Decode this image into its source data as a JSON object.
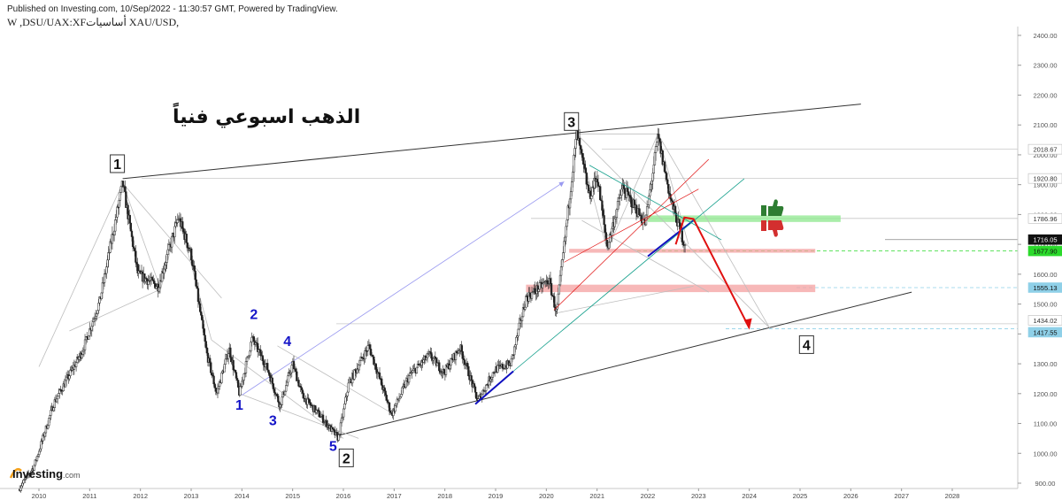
{
  "header": {
    "published": "Published on Investing.com, 10/Sep/2022 - 11:30:57 GMT, Powered by TradingView.",
    "symbol": "W ,DSU/UAX:XFأساسيات XAU/USD,"
  },
  "annotation_title": "الذهب اسبوعي فنياً",
  "logo": {
    "brand": "Investing",
    "suffix": ".com"
  },
  "colors": {
    "bullish_zone": "#8ee88e",
    "bearish_zone": "#f4a0a0",
    "down_arrow": "#e01010",
    "wave_blue": "#1010c0",
    "teal_line": "#15a08c",
    "price_label": "#111111",
    "level_green": "#2bd92b",
    "level_blue": "#8fd0e8"
  },
  "icons": [
    "thumbs-up-icon",
    "thumbs-down-icon",
    "investing-logo-icon"
  ],
  "chart_data": {
    "type": "candlestick",
    "timeframe": "weekly",
    "x_ticks": [
      "2010",
      "2011",
      "2012",
      "2013",
      "2014",
      "2015",
      "2016",
      "2017",
      "2018",
      "2019",
      "2020",
      "2021",
      "2022",
      "2023",
      "2024",
      "2025",
      "2026",
      "2027",
      "2028"
    ],
    "y_ticks": [
      "2400.00",
      "2300.00",
      "2200.00",
      "2100.00",
      "2000.00",
      "1900.00",
      "1800.00",
      "1700.00",
      "1600.00",
      "1500.00",
      "1400.00",
      "1300.00",
      "1200.00",
      "1100.00",
      "1000.00",
      "900.00"
    ],
    "ylim": [
      880,
      2420
    ],
    "xlim": [
      2009.6,
      2029.3
    ],
    "price_labels": [
      {
        "value": "2018.67",
        "kind": "plain"
      },
      {
        "value": "1920.80",
        "kind": "plain"
      },
      {
        "value": "1786.96",
        "kind": "plain"
      },
      {
        "value": "1716.05",
        "kind": "current"
      },
      {
        "value": "1677.90",
        "kind": "green"
      },
      {
        "value": "1555.13",
        "kind": "blue"
      },
      {
        "value": "1434.02",
        "kind": "plain"
      },
      {
        "value": "1417.55",
        "kind": "blue"
      }
    ],
    "anchors": [
      [
        2009.6,
        880
      ],
      [
        2009.9,
        955
      ],
      [
        2010.3,
        1170
      ],
      [
        2010.85,
        1340
      ],
      [
        2011.2,
        1510
      ],
      [
        2011.65,
        1905
      ],
      [
        2011.95,
        1600
      ],
      [
        2012.35,
        1560
      ],
      [
        2012.75,
        1790
      ],
      [
        2013.0,
        1665
      ],
      [
        2013.3,
        1340
      ],
      [
        2013.5,
        1200
      ],
      [
        2013.75,
        1350
      ],
      [
        2013.95,
        1200
      ],
      [
        2014.2,
        1385
      ],
      [
        2014.5,
        1285
      ],
      [
        2014.75,
        1160
      ],
      [
        2015.0,
        1300
      ],
      [
        2015.2,
        1190
      ],
      [
        2015.55,
        1125
      ],
      [
        2015.9,
        1050
      ],
      [
        2016.1,
        1230
      ],
      [
        2016.5,
        1360
      ],
      [
        2016.95,
        1130
      ],
      [
        2017.3,
        1260
      ],
      [
        2017.7,
        1330
      ],
      [
        2017.98,
        1270
      ],
      [
        2018.3,
        1355
      ],
      [
        2018.65,
        1175
      ],
      [
        2018.98,
        1280
      ],
      [
        2019.3,
        1300
      ],
      [
        2019.6,
        1520
      ],
      [
        2020.05,
        1580
      ],
      [
        2020.2,
        1470
      ],
      [
        2020.6,
        2070
      ],
      [
        2020.85,
        1860
      ],
      [
        2021.0,
        1930
      ],
      [
        2021.2,
        1690
      ],
      [
        2021.5,
        1890
      ],
      [
        2021.95,
        1770
      ],
      [
        2022.2,
        2060
      ],
      [
        2022.45,
        1850
      ],
      [
        2022.72,
        1700
      ],
      [
        2022.75,
        1716
      ]
    ],
    "wave_labels_major": [
      {
        "label": "1",
        "x": 2011.65,
        "y": 1905
      },
      {
        "label": "2",
        "x": 2015.9,
        "y": 1050
      },
      {
        "label": "3",
        "x": 2020.6,
        "y": 2070
      },
      {
        "label": "4",
        "x": 2024.5,
        "y": 1417.55
      }
    ],
    "wave_labels_minor": [
      {
        "label": "1",
        "x": 2013.95,
        "y": 1200
      },
      {
        "label": "2",
        "x": 2014.2,
        "y": 1385
      },
      {
        "label": "3",
        "x": 2014.75,
        "y": 1160
      },
      {
        "label": "4",
        "x": 2015.0,
        "y": 1300
      },
      {
        "label": "5",
        "x": 2015.9,
        "y": 1050
      }
    ],
    "zones": [
      {
        "kind": "bullish",
        "x1": 2022.0,
        "x2": 2025.8,
        "y_low": 1775,
        "y_high": 1797
      },
      {
        "kind": "bearish",
        "x1": 2020.45,
        "x2": 2025.3,
        "y_low": 1672,
        "y_high": 1685
      },
      {
        "kind": "bearish",
        "x1": 2019.6,
        "x2": 2025.3,
        "y_low": 1540,
        "y_high": 1565
      }
    ],
    "lines": [
      {
        "kind": "channel-top",
        "from": [
          2011.65,
          1920
        ],
        "to": [
          2026.2,
          2170
        ]
      },
      {
        "kind": "channel-bottom",
        "from": [
          2015.9,
          1060
        ],
        "to": [
          2027.2,
          1540
        ]
      },
      {
        "kind": "projection-arrow",
        "from": [
          2022.9,
          1785
        ],
        "to": [
          2024.0,
          1420
        ]
      }
    ]
  }
}
